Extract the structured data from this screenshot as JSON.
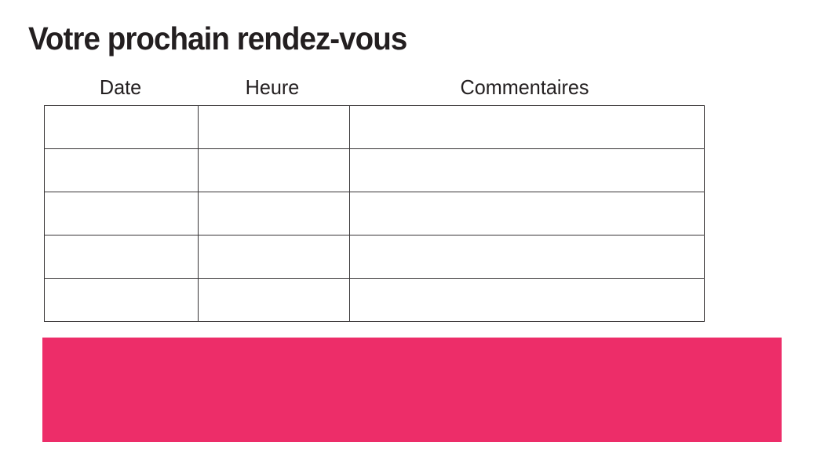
{
  "page": {
    "title": "Votre prochain rendez-vous"
  },
  "table": {
    "headers": [
      "Date",
      "Heure",
      "Commentaires"
    ],
    "rows": [
      [
        "",
        "",
        ""
      ],
      [
        "",
        "",
        ""
      ],
      [
        "",
        "",
        ""
      ],
      [
        "",
        "",
        ""
      ],
      [
        "",
        "",
        ""
      ]
    ]
  },
  "decor": {
    "accent_bar_color": "#ED2D69"
  },
  "colors": {
    "text": "#231F20",
    "table_border": "#383536",
    "background": "#FFFFFF"
  }
}
